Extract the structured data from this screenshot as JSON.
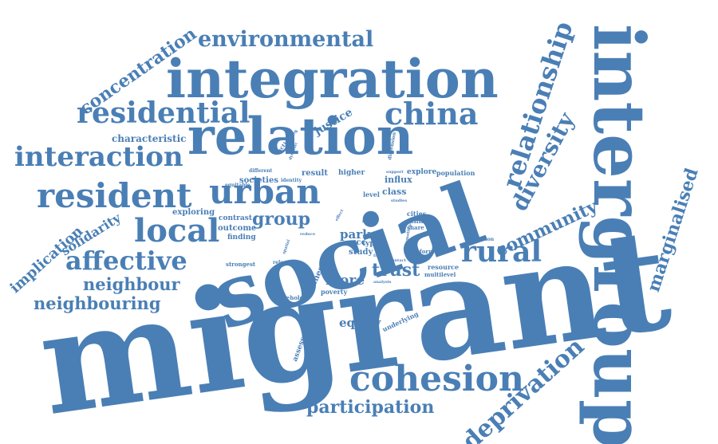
{
  "colors": {
    "word": "#4a7fb5",
    "background": "#ffffff"
  },
  "words": [
    "migrant",
    "social",
    "intergroup",
    "integration",
    "relation",
    "resident",
    "urban",
    "cohesion",
    "residential",
    "china",
    "interaction",
    "environmental",
    "relationship",
    "diversity",
    "local",
    "affective",
    "rural",
    "deprivation",
    "community",
    "marginalised",
    "concentration",
    "neighbouring",
    "neighbour",
    "participation",
    "group",
    "trust",
    "solidarity",
    "implication",
    "characteristic",
    "more",
    "equity",
    "park",
    "justice",
    "exploring",
    "outcome",
    "finding",
    "contrast",
    "societies",
    "study",
    "type",
    "acc",
    "class",
    "influx",
    "explore",
    "population",
    "result",
    "higher",
    "level",
    "cities",
    "ethnic",
    "share",
    "native",
    "informal",
    "resource",
    "multilevel",
    "chinese",
    "poverty",
    "household",
    "assessment",
    "underlying",
    "strongest",
    "relevant",
    "activities",
    "dimension",
    "different",
    "equitable",
    "identity",
    "dynamic",
    "support",
    "contact",
    "analysis",
    "question",
    "effect",
    "spatial",
    "reduce",
    "factor",
    "studies",
    "emotional",
    "many"
  ]
}
